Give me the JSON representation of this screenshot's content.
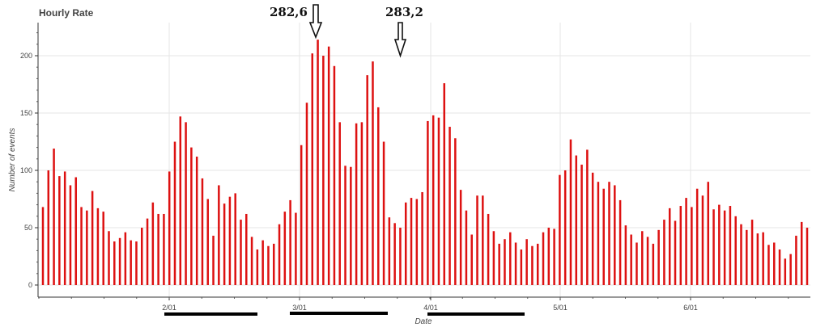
{
  "chart_data": {
    "type": "bar",
    "title": "Hourly Rate",
    "xlabel": "Date",
    "ylabel": "Number of events",
    "ylim": [
      0,
      230
    ],
    "yticks": [
      0,
      50,
      100,
      150,
      200
    ],
    "grid": true,
    "bar_color": "#dd1111",
    "x_tick_labels": [
      "2/01",
      "3/01",
      "4/01",
      "5/01",
      "6/01"
    ],
    "values": [
      68,
      100,
      119,
      95,
      99,
      87,
      94,
      68,
      65,
      82,
      67,
      64,
      47,
      38,
      41,
      46,
      39,
      38,
      50,
      58,
      72,
      62,
      62,
      99,
      125,
      147,
      142,
      120,
      112,
      93,
      75,
      43,
      87,
      71,
      77,
      80,
      57,
      62,
      42,
      31,
      39,
      34,
      36,
      53,
      64,
      74,
      63,
      122,
      159,
      202,
      214,
      200,
      208,
      191,
      142,
      104,
      103,
      141,
      142,
      183,
      195,
      155,
      125,
      59,
      54,
      50,
      72,
      76,
      75,
      81,
      143,
      148,
      146,
      176,
      138,
      128,
      83,
      65,
      44,
      78,
      78,
      62,
      47,
      36,
      40,
      46,
      37,
      31,
      40,
      34,
      36,
      46,
      50,
      49,
      96,
      100,
      127,
      113,
      105,
      118,
      98,
      90,
      84,
      90,
      87,
      74,
      52,
      44,
      37,
      47,
      42,
      36,
      48,
      57,
      67,
      56,
      69,
      76,
      68,
      84,
      78,
      90,
      66,
      70,
      65,
      69,
      60,
      53,
      48,
      57,
      45,
      46,
      35,
      37,
      31,
      23,
      27,
      43,
      55,
      50
    ],
    "annotations": [
      "282,6",
      "283,2"
    ]
  }
}
